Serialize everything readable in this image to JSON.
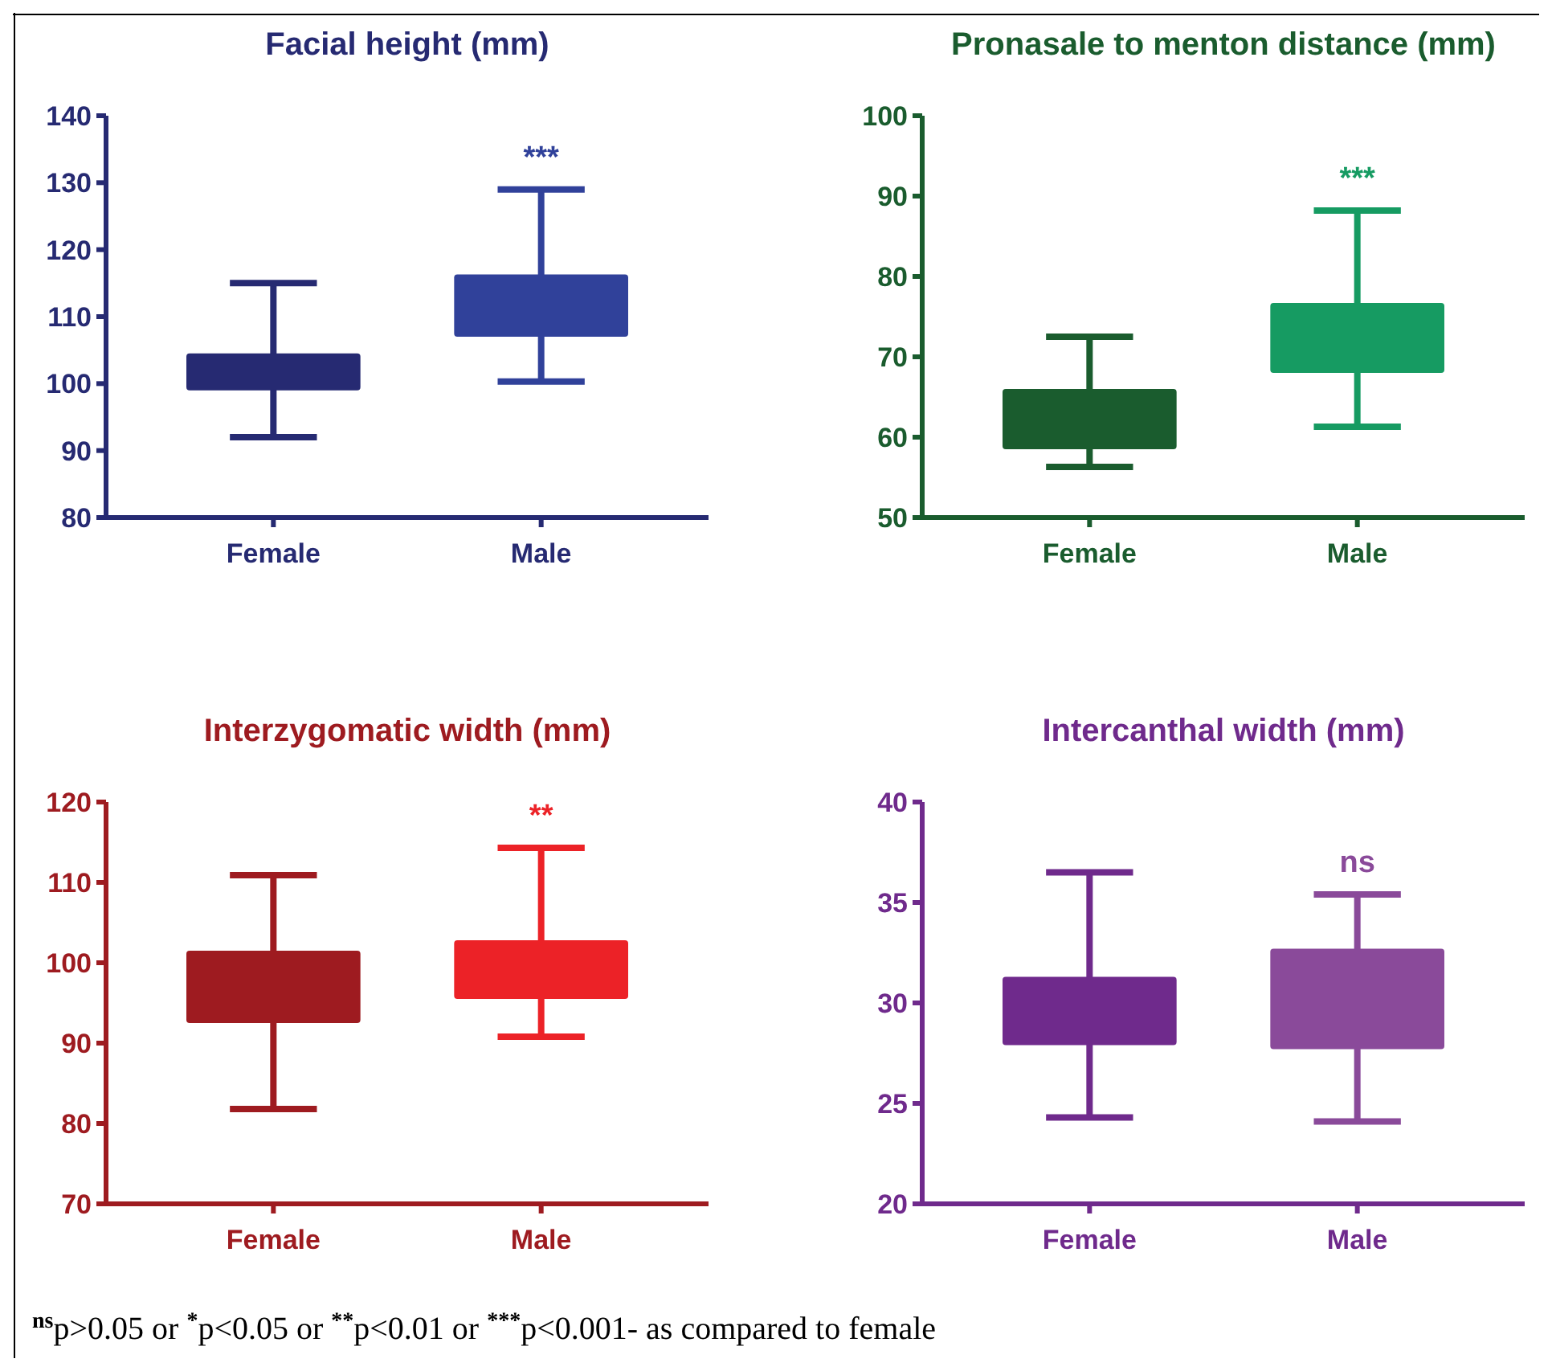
{
  "chart_data": [
    {
      "type": "box",
      "title": "Facial height (mm)",
      "categories": [
        "Female",
        "Male"
      ],
      "colors": [
        "#262a72",
        "#30419a"
      ],
      "ylim": [
        80,
        140
      ],
      "yticks": [
        80,
        90,
        100,
        110,
        120,
        130,
        140
      ],
      "boxes": [
        {
          "low": 92,
          "q1": 99,
          "q3": 104.5,
          "high": 115
        },
        {
          "low": 100.3,
          "q1": 107,
          "q3": 116.3,
          "high": 129
        }
      ],
      "annotations": [
        "***"
      ]
    },
    {
      "type": "box",
      "title": "Pronasale to menton distance (mm)",
      "categories": [
        "Female",
        "Male"
      ],
      "colors": [
        "#1a5c2e",
        "#169b62"
      ],
      "ylim": [
        50,
        100
      ],
      "yticks": [
        50,
        60,
        70,
        80,
        90,
        100
      ],
      "boxes": [
        {
          "low": 56.3,
          "q1": 58.5,
          "q3": 66,
          "high": 72.5
        },
        {
          "low": 61.3,
          "q1": 68,
          "q3": 76.7,
          "high": 88.2
        }
      ],
      "annotations": [
        "***"
      ]
    },
    {
      "type": "box",
      "title": "Interzygomatic width (mm)",
      "categories": [
        "Female",
        "Male"
      ],
      "colors": [
        "#9e1b20",
        "#ec2227"
      ],
      "ylim": [
        70,
        120
      ],
      "yticks": [
        70,
        80,
        90,
        100,
        110,
        120
      ],
      "boxes": [
        {
          "low": 81.8,
          "q1": 92.5,
          "q3": 101.5,
          "high": 110.9
        },
        {
          "low": 90.8,
          "q1": 95.5,
          "q3": 102.8,
          "high": 114.3
        }
      ],
      "annotations": [
        "**"
      ]
    },
    {
      "type": "box",
      "title": "Intercanthal width (mm)",
      "categories": [
        "Female",
        "Male"
      ],
      "colors": [
        "#6f2a8c",
        "#8a4a9a"
      ],
      "ylim": [
        20,
        40
      ],
      "yticks": [
        20,
        25,
        30,
        35,
        40
      ],
      "boxes": [
        {
          "low": 24.3,
          "q1": 27.9,
          "q3": 31.3,
          "high": 36.5
        },
        {
          "low": 24.1,
          "q1": 27.7,
          "q3": 32.7,
          "high": 35.4
        }
      ],
      "annotations": [
        "ns"
      ]
    },
    {
      "type": "other",
      "annotations": [
        "$^{ns}$p>0.05 or $^{*}$p<0.05 or $^{**}$p<0.01 or $^{***}$p<0.001- as compared to female"
      ]
    }
  ]
}
